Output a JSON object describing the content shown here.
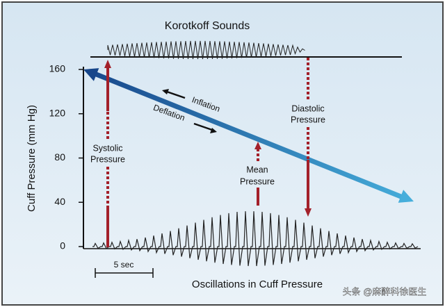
{
  "title": "Korotkoff Sounds",
  "axis": {
    "label": "Cuff Pressure (mm Hg)",
    "ticks": [
      160,
      120,
      80,
      40,
      0
    ]
  },
  "labels": {
    "inflation": "Inflation",
    "deflation": "Deflation",
    "systolic": [
      "Systolic",
      "Pressure"
    ],
    "mean": [
      "Mean",
      "Pressure"
    ],
    "diastolic": [
      "Diastolic",
      "Pressure"
    ]
  },
  "scale": "5 sec",
  "footer": "Oscillations in Cuff Pressure",
  "watermark": "头条 @麻醉科徐医生"
}
